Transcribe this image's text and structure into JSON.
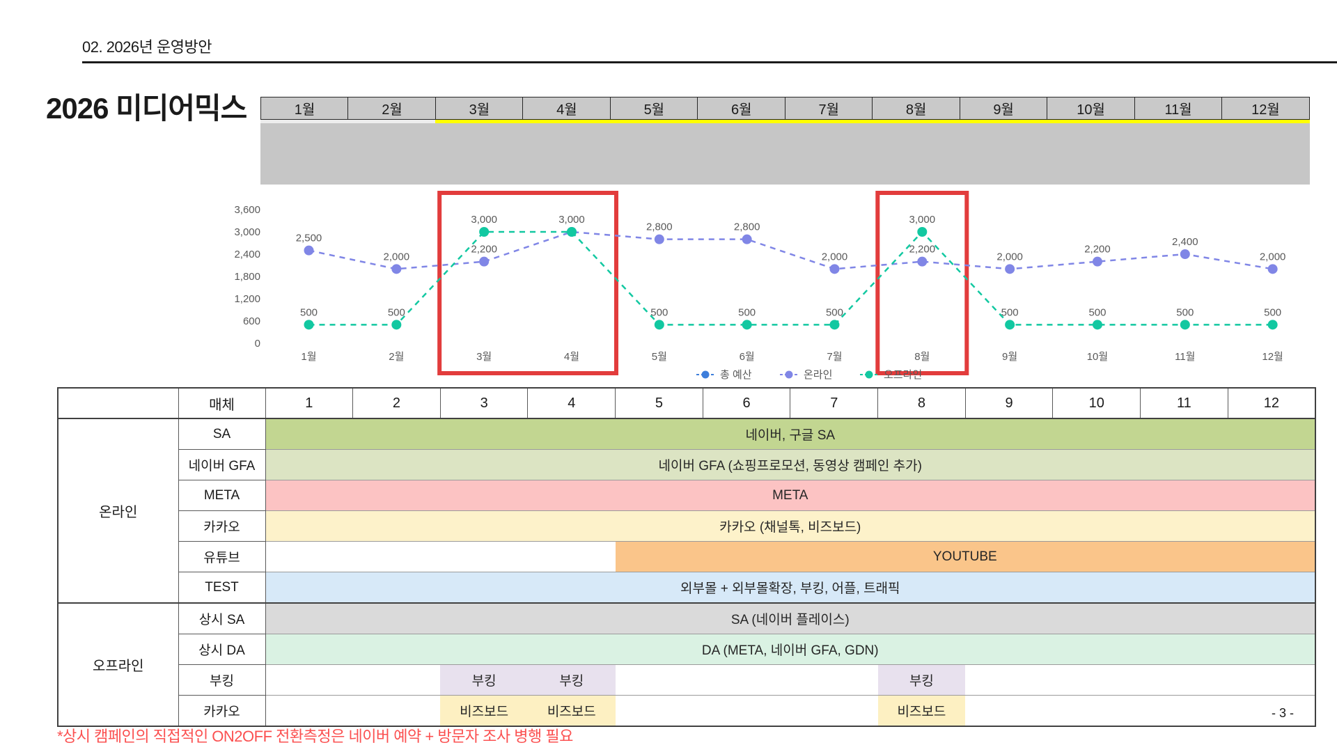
{
  "page": {
    "section_header": "02. 2026년 운영방안",
    "title": "2026 미디어믹스",
    "page_number": "- 3 -",
    "footnote": "*상시 캠페인의 직접적인 ON2OFF 전환측정은 네이버 예약 + 방문자 조사 병행 필요"
  },
  "timeline": {
    "months": [
      "1월",
      "2월",
      "3월",
      "4월",
      "5월",
      "6월",
      "7월",
      "8월",
      "9월",
      "10월",
      "11월",
      "12월"
    ],
    "highlight_from": 3,
    "highlight_color": "#ffff00",
    "plain_strip_color": "#ededed"
  },
  "chart_data": {
    "type": "line",
    "x": [
      "1월",
      "2월",
      "3월",
      "4월",
      "5월",
      "6월",
      "7월",
      "8월",
      "9월",
      "10월",
      "11월",
      "12월"
    ],
    "y_ticks": [
      0,
      600,
      1200,
      1800,
      2400,
      3000,
      3600
    ],
    "ylim": [
      0,
      3600
    ],
    "grid": false,
    "legend_position": "bottom",
    "legend": [
      {
        "label": "총 예산",
        "color": "#3d7edb"
      },
      {
        "label": "온라인",
        "color": "#8086e6"
      },
      {
        "label": "오프라인",
        "color": "#12c8a1"
      }
    ],
    "series": [
      {
        "name": "온라인",
        "color": "#8086e6",
        "values": [
          2500,
          2000,
          2200,
          3000,
          2800,
          2800,
          2000,
          2200,
          2000,
          2200,
          2400,
          2000
        ],
        "label_hidden_indices": [
          3
        ]
      },
      {
        "name": "오프라인",
        "color": "#12c8a1",
        "values": [
          500,
          500,
          3000,
          3000,
          500,
          500,
          500,
          3000,
          500,
          500,
          500,
          500
        ],
        "label_hidden_indices": []
      }
    ],
    "highlight_boxes": [
      {
        "months": [
          3,
          4
        ],
        "color": "#e23c3c"
      },
      {
        "months": [
          8
        ],
        "color": "#e23c3c"
      }
    ]
  },
  "table": {
    "corner_label": "",
    "media_header": "매체",
    "month_headers": [
      "1",
      "2",
      "3",
      "4",
      "5",
      "6",
      "7",
      "8",
      "9",
      "10",
      "11",
      "12"
    ],
    "groups": [
      {
        "label": "온라인",
        "rows": 6
      },
      {
        "label": "오프라인",
        "rows": 4
      }
    ],
    "rows": [
      {
        "label": "SA",
        "bar": {
          "start": 1,
          "end": 12,
          "color": "#c2d691",
          "text": "네이버, 구글 SA"
        }
      },
      {
        "label": "네이버 GFA",
        "bar": {
          "start": 1,
          "end": 12,
          "color": "#dce4c3",
          "text": "네이버 GFA (쇼핑프로모션, 동영상 캠페인 추가)"
        }
      },
      {
        "label": "META",
        "bar": {
          "start": 1,
          "end": 12,
          "color": "#fcc3c3",
          "text": "META"
        }
      },
      {
        "label": "카카오",
        "bar": {
          "start": 1,
          "end": 12,
          "color": "#fdf2ca",
          "text": "카카오 (채널톡, 비즈보드)"
        }
      },
      {
        "label": "유튜브",
        "bar": {
          "start": 5,
          "end": 12,
          "color": "#fac58a",
          "text": "YOUTUBE"
        }
      },
      {
        "label": "TEST",
        "bar": {
          "start": 1,
          "end": 12,
          "color": "#d7e9f8",
          "text": "외부몰 + 외부몰확장, 부킹, 어플, 트래픽"
        }
      },
      {
        "label": "상시 SA",
        "bar": {
          "start": 1,
          "end": 12,
          "color": "#dadada",
          "text": "SA (네이버 플레이스)"
        }
      },
      {
        "label": "상시 DA",
        "bar": {
          "start": 1,
          "end": 12,
          "color": "#daf2e3",
          "text": "DA (META, 네이버 GFA, GDN)"
        }
      },
      {
        "label": "부킹",
        "cells": {
          "color": "#e8e1ee",
          "months": [
            3,
            4,
            8
          ],
          "text": "부킹"
        }
      },
      {
        "label": "카카오",
        "cells": {
          "color": "#fdf0c2",
          "months": [
            3,
            4,
            8
          ],
          "text": "비즈보드"
        }
      }
    ]
  }
}
